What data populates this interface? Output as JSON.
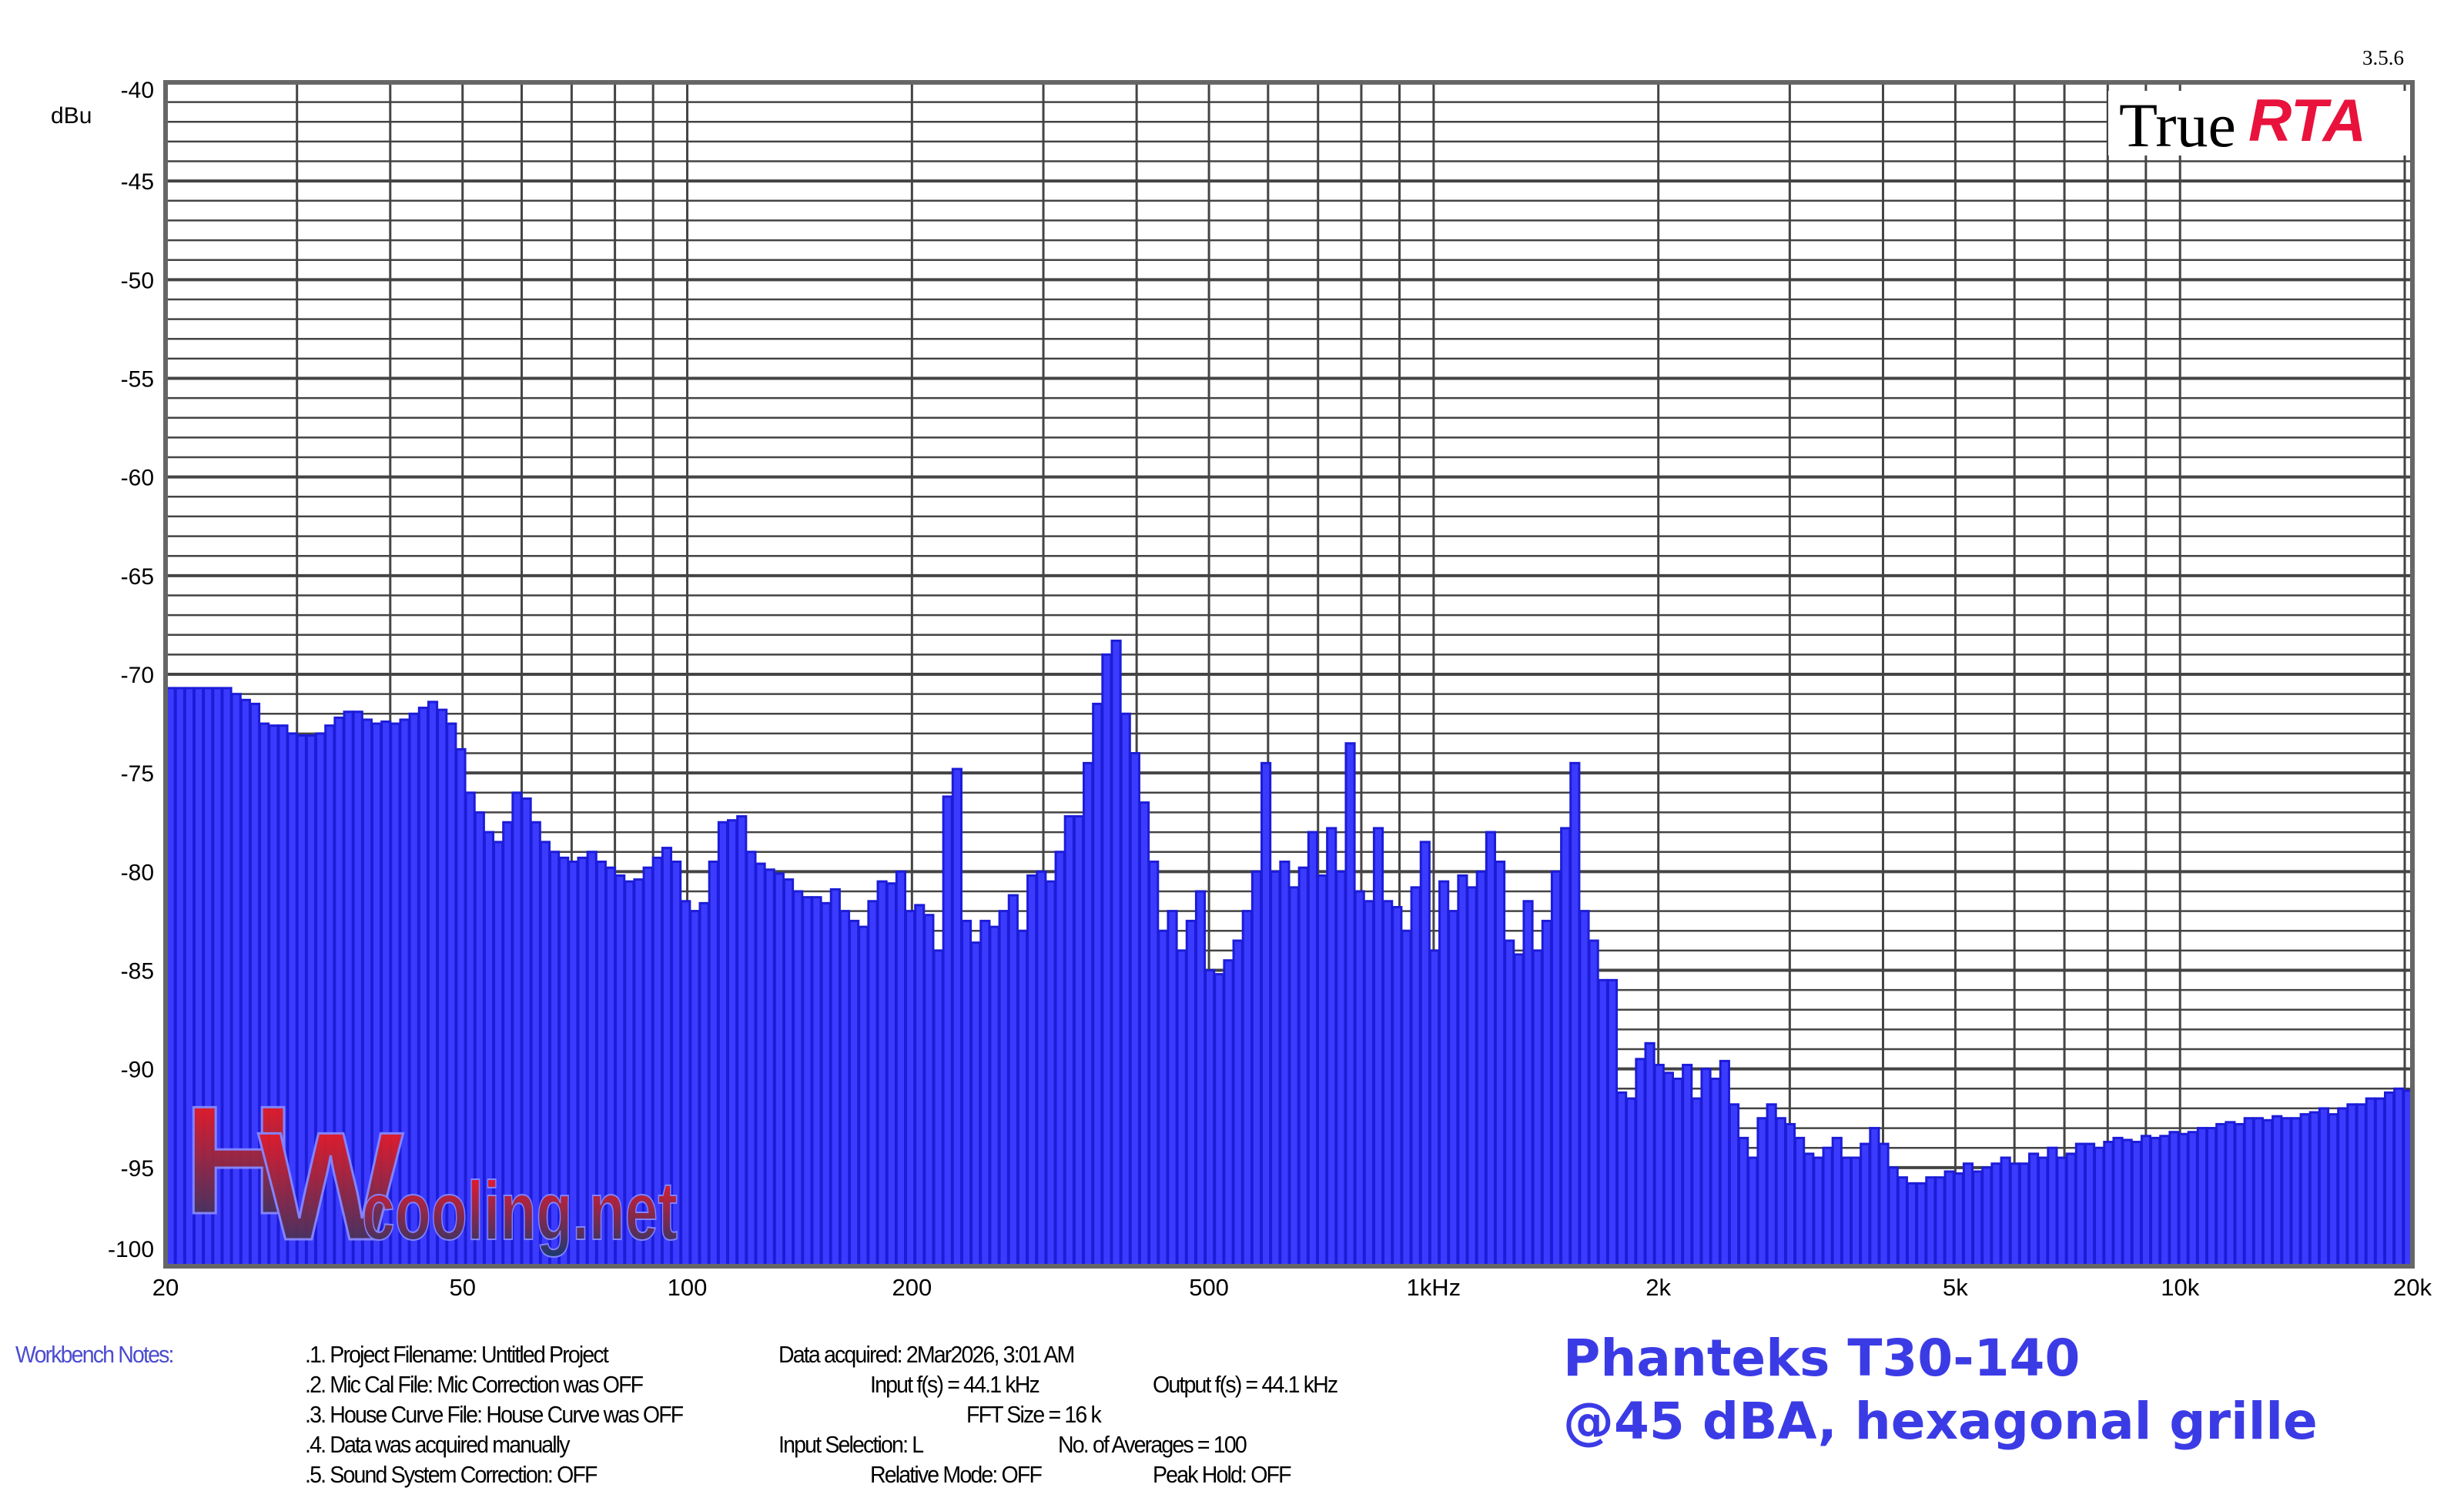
{
  "chart_data": {
    "type": "bar",
    "title": "Phanteks T30-140 @45 dBA, hexagonal grille",
    "ylabel": "dBu",
    "xlabel": "",
    "ylim": [
      -100,
      -40
    ],
    "xlim_hz": [
      20,
      20000
    ],
    "x_scale": "log",
    "bands_per_octave": 24,
    "start_hz": 20,
    "grid": true,
    "yticks": [
      -40,
      -45,
      -50,
      -55,
      -60,
      -65,
      -70,
      -75,
      -80,
      -85,
      -90,
      -95,
      -100
    ],
    "xticks": [
      {
        "hz": 20,
        "label": "20"
      },
      {
        "hz": 50,
        "label": "50"
      },
      {
        "hz": 100,
        "label": "100"
      },
      {
        "hz": 200,
        "label": "200"
      },
      {
        "hz": 500,
        "label": "500"
      },
      {
        "hz": 1000,
        "label": "1kHz"
      },
      {
        "hz": 2000,
        "label": "2k"
      },
      {
        "hz": 5000,
        "label": "5k"
      },
      {
        "hz": 10000,
        "label": "10k"
      },
      {
        "hz": 20000,
        "label": "20k"
      }
    ],
    "values": [
      -70.7,
      -70.7,
      -70.7,
      -70.7,
      -70.7,
      -70.7,
      -70.7,
      -71.0,
      -71.3,
      -71.5,
      -72.5,
      -72.6,
      -72.6,
      -73.0,
      -73.1,
      -73.1,
      -73.0,
      -72.6,
      -72.2,
      -71.9,
      -71.9,
      -72.3,
      -72.5,
      -72.4,
      -72.5,
      -72.3,
      -72.0,
      -71.7,
      -71.4,
      -71.8,
      -72.5,
      -73.8,
      -76.0,
      -77.0,
      -78.0,
      -78.5,
      -77.5,
      -76.0,
      -76.3,
      -77.5,
      -78.5,
      -79.0,
      -79.3,
      -79.5,
      -79.3,
      -79.0,
      -79.5,
      -79.8,
      -80.2,
      -80.5,
      -80.4,
      -79.8,
      -79.3,
      -78.8,
      -79.5,
      -81.5,
      -82.0,
      -81.6,
      -79.5,
      -77.5,
      -77.4,
      -77.2,
      -79.0,
      -79.6,
      -79.9,
      -80.1,
      -80.4,
      -81.0,
      -81.3,
      -81.3,
      -81.6,
      -80.9,
      -82.0,
      -82.5,
      -82.8,
      -81.5,
      -80.5,
      -80.6,
      -80.0,
      -82.0,
      -81.7,
      -82.2,
      -84.0,
      -76.2,
      -74.8,
      -82.5,
      -83.6,
      -82.5,
      -82.8,
      -82.0,
      -81.2,
      -83.0,
      -80.2,
      -80.0,
      -80.5,
      -79.0,
      -77.2,
      -77.2,
      -74.5,
      -71.5,
      -69.0,
      -68.3,
      -72.0,
      -74.0,
      -76.5,
      -79.5,
      -83.0,
      -82.0,
      -84.0,
      -82.5,
      -81.0,
      -85.0,
      -85.2,
      -84.5,
      -83.5,
      -82.0,
      -80.0,
      -74.5,
      -80.0,
      -79.5,
      -80.8,
      -79.8,
      -78.0,
      -80.2,
      -77.8,
      -80.0,
      -73.5,
      -81.0,
      -81.5,
      -77.8,
      -81.5,
      -81.8,
      -83.0,
      -80.8,
      -78.5,
      -84.0,
      -80.5,
      -82.0,
      -80.2,
      -80.8,
      -80.0,
      -78.0,
      -79.5,
      -83.5,
      -84.2,
      -81.5,
      -84.0,
      -82.5,
      -80.0,
      -77.8,
      -74.5,
      -82.0,
      -83.5,
      -85.5,
      -85.5,
      -91.2,
      -91.5,
      -89.5,
      -88.7,
      -89.8,
      -90.2,
      -90.5,
      -89.8,
      -91.5,
      -90.0,
      -90.5,
      -89.6,
      -91.8,
      -93.5,
      -94.5,
      -92.5,
      -91.8,
      -92.5,
      -92.8,
      -93.5,
      -94.3,
      -94.5,
      -94.0,
      -93.5,
      -94.5,
      -94.5,
      -93.8,
      -93.0,
      -93.8,
      -95.0,
      -95.5,
      -95.8,
      -95.8,
      -95.5,
      -95.5,
      -95.2,
      -95.3,
      -94.8,
      -95.2,
      -95.0,
      -94.8,
      -94.5,
      -94.8,
      -94.8,
      -94.3,
      -94.5,
      -94.0,
      -94.5,
      -94.3,
      -93.8,
      -93.8,
      -94.0,
      -93.7,
      -93.5,
      -93.6,
      -93.7,
      -93.4,
      -93.5,
      -93.4,
      -93.2,
      -93.3,
      -93.2,
      -93.0,
      -93.0,
      -92.8,
      -92.7,
      -92.8,
      -92.5,
      -92.5,
      -92.6,
      -92.4,
      -92.5,
      -92.5,
      -92.3,
      -92.2,
      -92.0,
      -92.3,
      -92.0,
      -91.8,
      -91.8,
      -91.5,
      -91.5,
      -91.2,
      -91.0,
      -91.1
    ],
    "colors": {
      "bar_fill": "#3b3bff",
      "bar_edge": "#1c1cd8",
      "grid": "#444444",
      "title": "#3b3be6"
    }
  },
  "title": {
    "line1": "Phanteks T30-140",
    "line2": "@45 dBA, hexagonal grille"
  },
  "version": "3.5.6",
  "logo": {
    "true": "True",
    "rta": "RTA"
  },
  "watermark": {
    "text": "HWcooling.net"
  },
  "notes": {
    "heading": "Workbench Notes:",
    "line1": ".1. Project Filename: Untitled Project",
    "line2": ".2. Mic Cal File: Mic Correction was OFF",
    "line3": ".3. House Curve File: House Curve was OFF",
    "line4": ".4. Data was acquired manually",
    "line5": ".5. Sound System Correction: OFF",
    "data_acquired": "Data acquired: 2Mar2026, 3:01 AM",
    "input_fs": "Input f(s) = 44.1 kHz",
    "output_fs": "Output f(s) = 44.1 kHz",
    "fft_size": "FFT Size = 16 k",
    "input_selection": "Input Selection: L",
    "averages": "No. of Averages = 100",
    "relative_mode": "Relative Mode:  OFF",
    "peak_hold": "Peak Hold: OFF"
  }
}
